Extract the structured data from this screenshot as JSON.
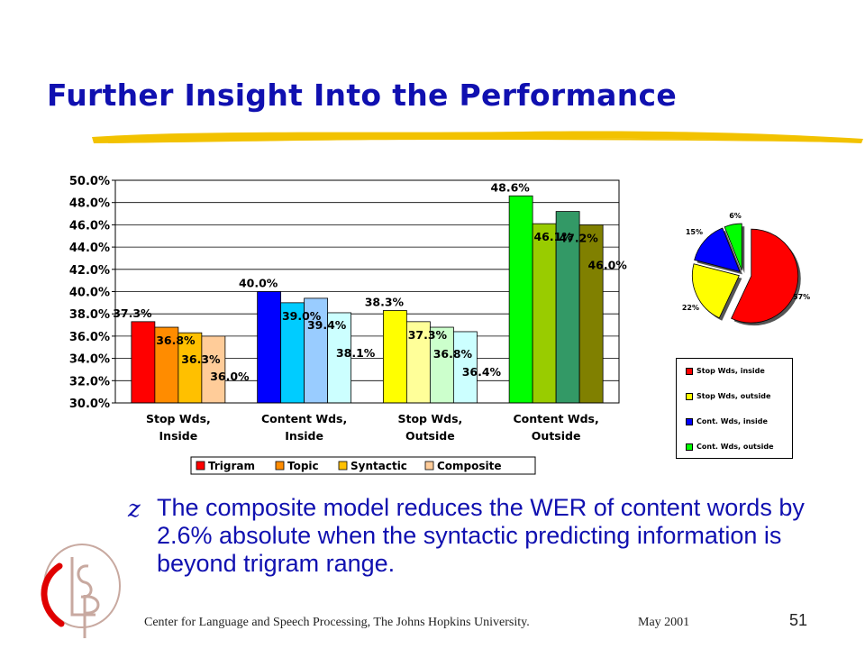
{
  "slide": {
    "title": "Further Insight Into the Performance",
    "bullet_glyph": "z",
    "bullet": "The composite model reduces the WER of content words by 2.6% absolute when the syntactic predicting information is beyond trigram range.",
    "footer": "Center for Language and Speech Processing, The Johns Hopkins University.",
    "date": "May 2001",
    "page_number": "51",
    "logo_icon": "clsp-logo-icon",
    "underline_color": "#f2c200"
  },
  "chart_data": [
    {
      "type": "bar",
      "categories": [
        [
          "Stop Wds,",
          "Inside"
        ],
        [
          "Content Wds,",
          "Inside"
        ],
        [
          "Stop Wds,",
          "Outside"
        ],
        [
          "Content Wds,",
          "Outside"
        ]
      ],
      "series": [
        {
          "name": "Trigram",
          "values": [
            37.3,
            40.0,
            38.3,
            48.6
          ],
          "labels": [
            "37.3%",
            "40.0%",
            "38.3%",
            "48.6%"
          ]
        },
        {
          "name": "Topic",
          "values": [
            36.8,
            39.0,
            37.3,
            46.1
          ],
          "labels": [
            "36.8%",
            "39.0%",
            "37.3%",
            "46.1%"
          ]
        },
        {
          "name": "Syntactic",
          "values": [
            36.3,
            39.4,
            36.8,
            47.2
          ],
          "labels": [
            "36.3%",
            "39.4%",
            "36.8%",
            "47.2%"
          ]
        },
        {
          "name": "Composite",
          "values": [
            36.0,
            38.1,
            36.4,
            46.0
          ],
          "labels": [
            "36.0%",
            "38.1%",
            "36.4%",
            "46.0%"
          ]
        }
      ],
      "bar_colors": [
        [
          "#ff0000",
          "#ff8c00",
          "#ffc000",
          "#ffcc99"
        ],
        [
          "#0000ff",
          "#00ccff",
          "#99ccff",
          "#ccffff"
        ],
        [
          "#ffff00",
          "#ffff99",
          "#ccffcc",
          "#ccffff"
        ],
        [
          "#00ff00",
          "#99cc00",
          "#339966",
          "#808000"
        ]
      ],
      "legend_colors": [
        "#ff0000",
        "#ff8c00",
        "#ffc000",
        "#ffcc99"
      ],
      "ylim": [
        30,
        50
      ],
      "yticks": [
        "30.0%",
        "32.0%",
        "34.0%",
        "36.0%",
        "38.0%",
        "40.0%",
        "42.0%",
        "44.0%",
        "46.0%",
        "48.0%",
        "50.0%"
      ],
      "grid": true,
      "legend_position": "bottom"
    },
    {
      "type": "pie",
      "labels": [
        "Stop Wds, inside",
        "Stop Wds, outside",
        "Cont. Wds, inside",
        "Cont. Wds, outside"
      ],
      "values": [
        57,
        22,
        15,
        6
      ],
      "value_labels": [
        "57%",
        "22%",
        "15%",
        "6%"
      ],
      "colors": [
        "#ff0000",
        "#ffff00",
        "#0000ff",
        "#00ff00"
      ],
      "legend_position": "bottom"
    }
  ]
}
